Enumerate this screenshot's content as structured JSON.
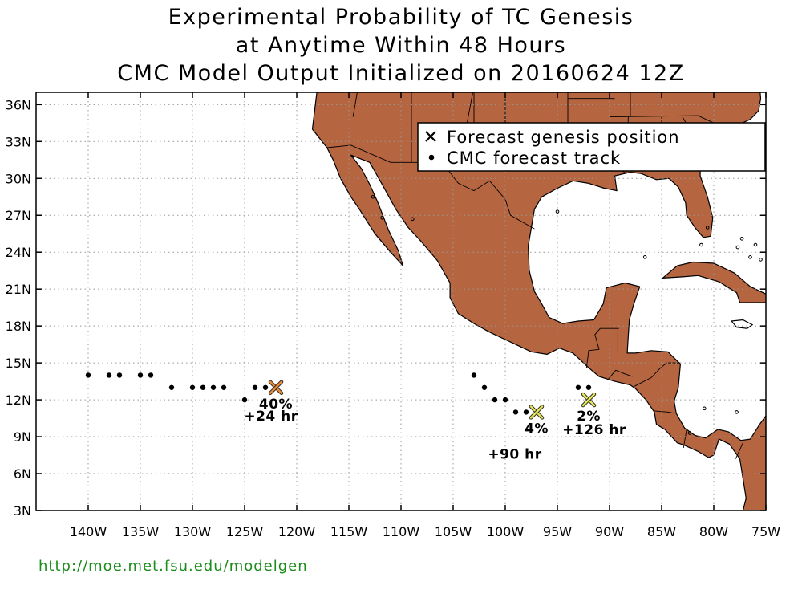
{
  "title": {
    "line1": "Experimental Probability of TC Genesis",
    "line2": "at Anytime Within 48 Hours",
    "line3": "CMC Model Output Initialized on 20160624 12Z"
  },
  "map": {
    "lon_range": [
      -145,
      -75
    ],
    "lat_range": [
      3,
      37
    ],
    "x_ticks": [
      {
        "value": -140,
        "label": "140W"
      },
      {
        "value": -135,
        "label": "135W"
      },
      {
        "value": -130,
        "label": "130W"
      },
      {
        "value": -125,
        "label": "125W"
      },
      {
        "value": -120,
        "label": "120W"
      },
      {
        "value": -115,
        "label": "115W"
      },
      {
        "value": -110,
        "label": "110W"
      },
      {
        "value": -105,
        "label": "105W"
      },
      {
        "value": -100,
        "label": "100W"
      },
      {
        "value": -95,
        "label": "95W"
      },
      {
        "value": -90,
        "label": "90W"
      },
      {
        "value": -85,
        "label": "85W"
      },
      {
        "value": -80,
        "label": "80W"
      },
      {
        "value": -75,
        "label": "75W"
      }
    ],
    "y_ticks": [
      {
        "value": 3,
        "label": "3N"
      },
      {
        "value": 6,
        "label": "6N"
      },
      {
        "value": 9,
        "label": "9N"
      },
      {
        "value": 12,
        "label": "12N"
      },
      {
        "value": 15,
        "label": "15N"
      },
      {
        "value": 18,
        "label": "18N"
      },
      {
        "value": 21,
        "label": "21N"
      },
      {
        "value": 24,
        "label": "24N"
      },
      {
        "value": 27,
        "label": "27N"
      },
      {
        "value": 30,
        "label": "30N"
      },
      {
        "value": 33,
        "label": "33N"
      },
      {
        "value": 36,
        "label": "36N"
      }
    ],
    "land_color": "#b5653f",
    "ocean_color": "#ffffff",
    "grid_color": "#999999"
  },
  "legend": {
    "genesis_label": "Forecast genesis position",
    "track_label": "CMC forecast track"
  },
  "tracks": [
    {
      "points": [
        [
          -140,
          14
        ],
        [
          -138,
          14
        ],
        [
          -137,
          14
        ],
        [
          -135,
          14
        ],
        [
          -134,
          14
        ],
        [
          -132,
          13
        ],
        [
          -130,
          13
        ],
        [
          -129,
          13
        ],
        [
          -128,
          13
        ],
        [
          -127,
          13
        ],
        [
          -125,
          12
        ],
        [
          -124,
          13
        ],
        [
          -123,
          13
        ]
      ]
    },
    {
      "points": [
        [
          -103,
          14
        ],
        [
          -102,
          13
        ],
        [
          -101,
          12
        ],
        [
          -100,
          12
        ],
        [
          -99,
          11
        ],
        [
          -98,
          11
        ]
      ]
    },
    {
      "points": [
        [
          -93,
          13
        ],
        [
          -92,
          13
        ]
      ]
    }
  ],
  "genesis": [
    {
      "lon": -122,
      "lat": 13,
      "color": "#f08a30",
      "probability": "40%",
      "lead_time": "+24 hr"
    },
    {
      "lon": -97,
      "lat": 11,
      "color": "#eaea50",
      "probability": "4%",
      "lead_time": "+90 hr"
    },
    {
      "lon": -92,
      "lat": 12,
      "color": "#eaea50",
      "probability": "2%",
      "lead_time": "+126 hr"
    }
  ],
  "source_url": "http://moe.met.fsu.edu/modelgen"
}
